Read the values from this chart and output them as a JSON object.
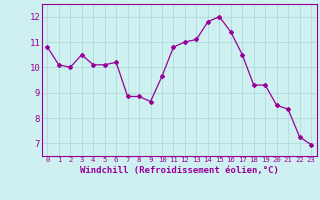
{
  "x": [
    0,
    1,
    2,
    3,
    4,
    5,
    6,
    7,
    8,
    9,
    10,
    11,
    12,
    13,
    14,
    15,
    16,
    17,
    18,
    19,
    20,
    21,
    22,
    23
  ],
  "y": [
    10.8,
    10.1,
    10.0,
    10.5,
    10.1,
    10.1,
    10.2,
    8.85,
    8.85,
    8.65,
    9.65,
    10.8,
    11.0,
    11.1,
    11.8,
    12.0,
    11.4,
    10.5,
    9.3,
    9.3,
    8.5,
    8.35,
    7.25,
    6.95
  ],
  "line_color": "#990099",
  "marker": "D",
  "marker_size": 2.0,
  "bg_color": "#cff0f0",
  "grid_color": "#b0dada",
  "xlabel": "Windchill (Refroidissement éolien,°C)",
  "xlim": [
    -0.5,
    23.5
  ],
  "ylim": [
    6.5,
    12.5
  ],
  "yticks": [
    7,
    8,
    9,
    10,
    11,
    12
  ],
  "xticks": [
    0,
    1,
    2,
    3,
    4,
    5,
    6,
    7,
    8,
    9,
    10,
    11,
    12,
    13,
    14,
    15,
    16,
    17,
    18,
    19,
    20,
    21,
    22,
    23
  ],
  "tick_color": "#990099",
  "label_color": "#990099",
  "spine_color": "#990099",
  "xlabel_fontsize": 6.5,
  "xtick_fontsize": 5.2,
  "ytick_fontsize": 6.5
}
